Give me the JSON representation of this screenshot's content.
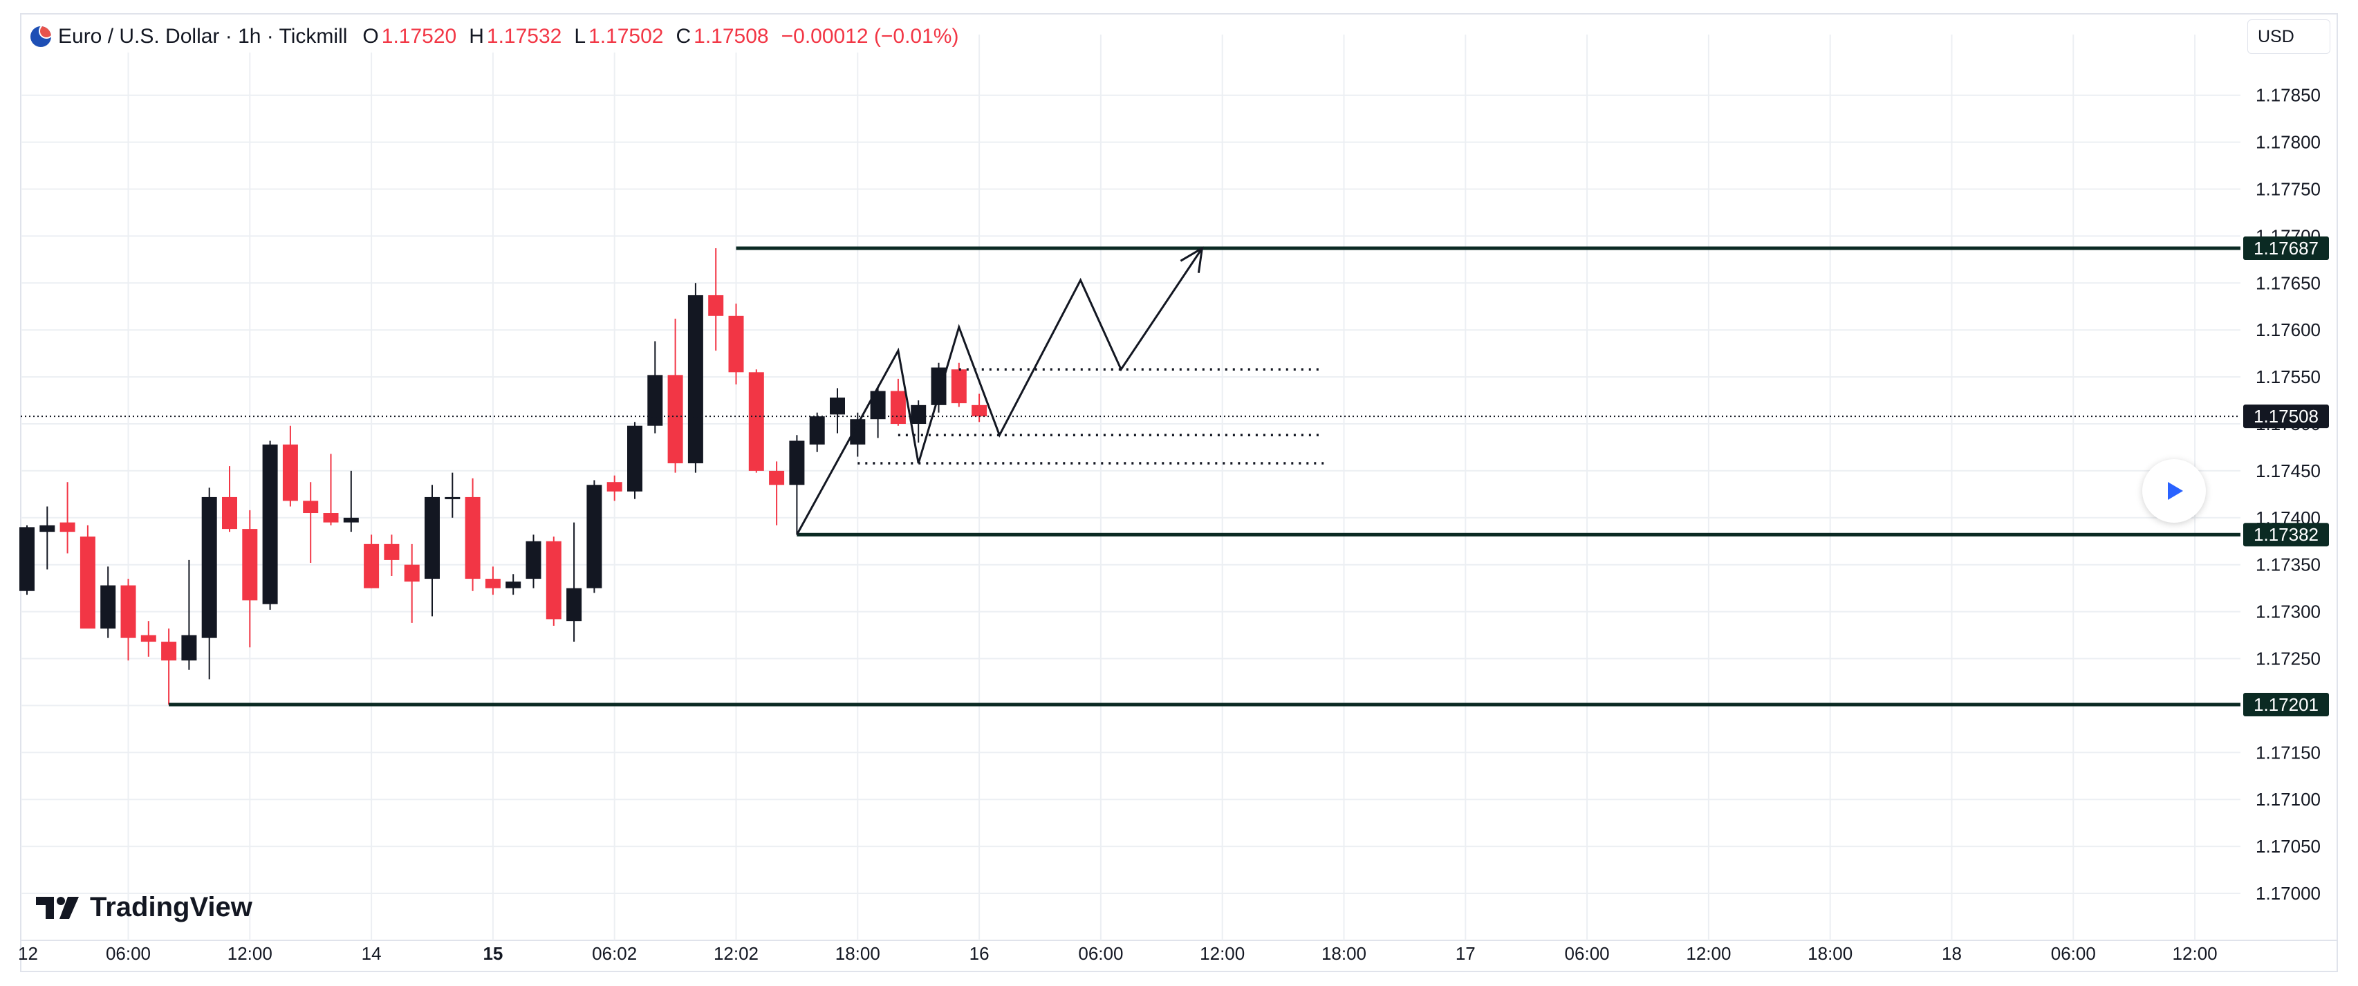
{
  "header": {
    "symbol": "Euro / U.S. Dollar · 1h · Tickmill",
    "open_label": "O",
    "open": "1.17520",
    "high_label": "H",
    "high": "1.17532",
    "low_label": "L",
    "low": "1.17502",
    "close_label": "C",
    "close": "1.17508",
    "change": "−0.00012 (−0.01%)"
  },
  "currency": "USD",
  "logo_text": "TradingView",
  "icons": {
    "play": "play-icon",
    "flag": "eurusd-flag-icon",
    "logo": "tradingview-logo-icon"
  },
  "colors": {
    "up": "#131722",
    "down": "#f23645",
    "line": "#0b2a23",
    "grid": "#eceff3",
    "play": "#2962ff"
  },
  "chart_data": {
    "type": "candlestick",
    "title": "Euro / U.S. Dollar · 1h · Tickmill",
    "ylim": [
      1.16965,
      1.17915
    ],
    "y_ticks": [
      "1.17000",
      "1.17050",
      "1.17100",
      "1.17150",
      "1.17200",
      "1.17250",
      "1.17300",
      "1.17350",
      "1.17400",
      "1.17450",
      "1.17500",
      "1.17550",
      "1.17600",
      "1.17650",
      "1.17700",
      "1.17750",
      "1.17800",
      "1.17850"
    ],
    "x_ticks": [
      {
        "label": "12",
        "bar": -1
      },
      {
        "label": "06:00",
        "bar": 5
      },
      {
        "label": "12:00",
        "bar": 11
      },
      {
        "label": "14",
        "bar": 17
      },
      {
        "label": "15",
        "bar": 23,
        "bold": true
      },
      {
        "label": "06:02",
        "bar": 29
      },
      {
        "label": "12:02",
        "bar": 35
      },
      {
        "label": "18:00",
        "bar": 41
      },
      {
        "label": "16",
        "bar": 47
      },
      {
        "label": "06:00",
        "bar": 53
      },
      {
        "label": "12:00",
        "bar": 59
      },
      {
        "label": "18:00",
        "bar": 65
      },
      {
        "label": "17",
        "bar": 71
      },
      {
        "label": "06:00",
        "bar": 77
      },
      {
        "label": "12:00",
        "bar": 83
      },
      {
        "label": "18:00",
        "bar": 89
      },
      {
        "label": "18",
        "bar": 95
      },
      {
        "label": "06:00",
        "bar": 101
      },
      {
        "label": "12:00",
        "bar": 107
      }
    ],
    "candles": [
      {
        "o": 1.17322,
        "h": 1.17392,
        "l": 1.17318,
        "c": 1.1739
      },
      {
        "o": 1.17385,
        "h": 1.17412,
        "l": 1.17345,
        "c": 1.17392
      },
      {
        "o": 1.17395,
        "h": 1.17438,
        "l": 1.17362,
        "c": 1.17385
      },
      {
        "o": 1.1738,
        "h": 1.17392,
        "l": 1.17282,
        "c": 1.17282
      },
      {
        "o": 1.17282,
        "h": 1.17348,
        "l": 1.17272,
        "c": 1.17328
      },
      {
        "o": 1.17328,
        "h": 1.17335,
        "l": 1.17248,
        "c": 1.17272
      },
      {
        "o": 1.17275,
        "h": 1.1729,
        "l": 1.17252,
        "c": 1.17268
      },
      {
        "o": 1.17268,
        "h": 1.17282,
        "l": 1.17201,
        "c": 1.17248
      },
      {
        "o": 1.17248,
        "h": 1.17355,
        "l": 1.17238,
        "c": 1.17275
      },
      {
        "o": 1.17272,
        "h": 1.17432,
        "l": 1.17228,
        "c": 1.17422
      },
      {
        "o": 1.17422,
        "h": 1.17455,
        "l": 1.17385,
        "c": 1.17388
      },
      {
        "o": 1.17388,
        "h": 1.17408,
        "l": 1.17262,
        "c": 1.17312
      },
      {
        "o": 1.17308,
        "h": 1.17482,
        "l": 1.17302,
        "c": 1.17478
      },
      {
        "o": 1.17478,
        "h": 1.17498,
        "l": 1.17412,
        "c": 1.17418
      },
      {
        "o": 1.17418,
        "h": 1.17438,
        "l": 1.17352,
        "c": 1.17405
      },
      {
        "o": 1.17405,
        "h": 1.17468,
        "l": 1.17392,
        "c": 1.17395
      },
      {
        "o": 1.17395,
        "h": 1.1745,
        "l": 1.17385,
        "c": 1.174
      },
      {
        "o": 1.17372,
        "h": 1.17382,
        "l": 1.17325,
        "c": 1.17325
      },
      {
        "o": 1.17372,
        "h": 1.17382,
        "l": 1.17338,
        "c": 1.17355
      },
      {
        "o": 1.1735,
        "h": 1.17372,
        "l": 1.17288,
        "c": 1.17332
      },
      {
        "o": 1.17335,
        "h": 1.17435,
        "l": 1.17295,
        "c": 1.17422
      },
      {
        "o": 1.1742,
        "h": 1.17448,
        "l": 1.174,
        "c": 1.17422
      },
      {
        "o": 1.17422,
        "h": 1.17442,
        "l": 1.17322,
        "c": 1.17335
      },
      {
        "o": 1.17335,
        "h": 1.17348,
        "l": 1.17318,
        "c": 1.17325
      },
      {
        "o": 1.17325,
        "h": 1.1734,
        "l": 1.17318,
        "c": 1.17332
      },
      {
        "o": 1.17335,
        "h": 1.17382,
        "l": 1.17325,
        "c": 1.17375
      },
      {
        "o": 1.17375,
        "h": 1.1738,
        "l": 1.17285,
        "c": 1.17292
      },
      {
        "o": 1.1729,
        "h": 1.17395,
        "l": 1.17268,
        "c": 1.17325
      },
      {
        "o": 1.17325,
        "h": 1.1744,
        "l": 1.1732,
        "c": 1.17435
      },
      {
        "o": 1.17438,
        "h": 1.17445,
        "l": 1.17418,
        "c": 1.17428
      },
      {
        "o": 1.17428,
        "h": 1.17502,
        "l": 1.1742,
        "c": 1.17498
      },
      {
        "o": 1.17498,
        "h": 1.17588,
        "l": 1.1749,
        "c": 1.17552
      },
      {
        "o": 1.17552,
        "h": 1.17612,
        "l": 1.17448,
        "c": 1.17458
      },
      {
        "o": 1.17458,
        "h": 1.1765,
        "l": 1.17448,
        "c": 1.17637
      },
      {
        "o": 1.17637,
        "h": 1.17687,
        "l": 1.17578,
        "c": 1.17615
      },
      {
        "o": 1.17615,
        "h": 1.17628,
        "l": 1.17542,
        "c": 1.17555
      },
      {
        "o": 1.17555,
        "h": 1.17558,
        "l": 1.17448,
        "c": 1.1745
      },
      {
        "o": 1.1745,
        "h": 1.1746,
        "l": 1.17392,
        "c": 1.17435
      },
      {
        "o": 1.17435,
        "h": 1.17488,
        "l": 1.17382,
        "c": 1.17482
      },
      {
        "o": 1.17478,
        "h": 1.17512,
        "l": 1.1747,
        "c": 1.17508
      },
      {
        "o": 1.1751,
        "h": 1.17538,
        "l": 1.1749,
        "c": 1.17528
      },
      {
        "o": 1.17478,
        "h": 1.17512,
        "l": 1.17465,
        "c": 1.17505
      },
      {
        "o": 1.17505,
        "h": 1.17538,
        "l": 1.17485,
        "c": 1.17535
      },
      {
        "o": 1.17535,
        "h": 1.17548,
        "l": 1.17498,
        "c": 1.175
      },
      {
        "o": 1.175,
        "h": 1.17525,
        "l": 1.1748,
        "c": 1.1752
      },
      {
        "o": 1.1752,
        "h": 1.17565,
        "l": 1.17512,
        "c": 1.1756
      },
      {
        "o": 1.17558,
        "h": 1.17565,
        "l": 1.17518,
        "c": 1.17522
      },
      {
        "o": 1.1752,
        "h": 1.17532,
        "l": 1.17502,
        "c": 1.17508
      }
    ],
    "current_price": 1.17508,
    "price_labels": [
      "1.17687",
      "1.17508",
      "1.17382",
      "1.17201"
    ],
    "levels": [
      {
        "price": 1.17687,
        "from_bar": 35,
        "style": "solid"
      },
      {
        "price": 1.17382,
        "from_bar": 38,
        "style": "solid"
      },
      {
        "price": 1.17201,
        "from_bar": 7,
        "style": "solid"
      }
    ],
    "dotted_levels": [
      {
        "price": 1.17558,
        "from_bar": 46,
        "to_bar": 64
      },
      {
        "price": 1.17488,
        "from_bar": 43,
        "to_bar": 64
      },
      {
        "price": 1.17458,
        "from_bar": 41,
        "to_bar": 64
      }
    ],
    "projection_path": [
      {
        "bar": 38,
        "price": 1.17382
      },
      {
        "bar": 43,
        "price": 1.17578
      },
      {
        "bar": 44,
        "price": 1.17458
      },
      {
        "bar": 46,
        "price": 1.17603
      },
      {
        "bar": 48,
        "price": 1.17488
      },
      {
        "bar": 52,
        "price": 1.17653
      },
      {
        "bar": 54,
        "price": 1.17558
      },
      {
        "bar": 58,
        "price": 1.17687
      }
    ]
  }
}
